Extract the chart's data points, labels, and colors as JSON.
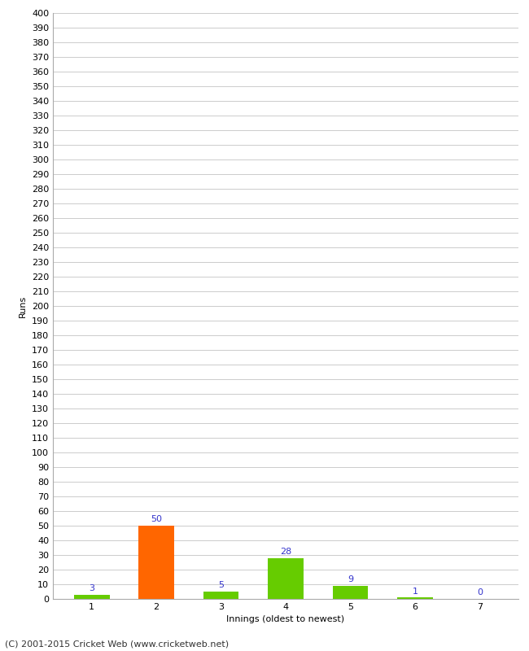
{
  "categories": [
    "1",
    "2",
    "3",
    "4",
    "5",
    "6",
    "7"
  ],
  "values": [
    3,
    50,
    5,
    28,
    9,
    1,
    0
  ],
  "bar_colors": [
    "#66cc00",
    "#ff6600",
    "#66cc00",
    "#66cc00",
    "#66cc00",
    "#66cc00",
    "#66cc00"
  ],
  "xlabel": "Innings (oldest to newest)",
  "ylabel": "Runs",
  "ylim": [
    0,
    400
  ],
  "ytick_step": 10,
  "label_color": "#3333cc",
  "background_color": "#ffffff",
  "grid_color": "#cccccc",
  "footer": "(C) 2001-2015 Cricket Web (www.cricketweb.net)",
  "bar_width": 0.55,
  "tick_fontsize": 8,
  "label_fontsize": 8,
  "footer_fontsize": 8
}
